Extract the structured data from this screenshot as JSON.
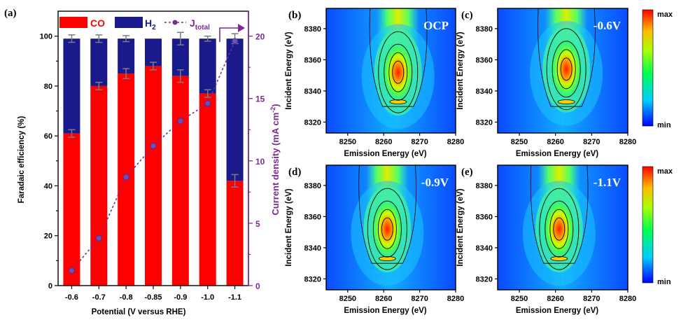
{
  "panel_a": {
    "label": "(a)",
    "xlabel": "Potential (V versus RHE)",
    "ylabel_left": "Faradaic efficiency (%)",
    "ylabel_right": "Current density (mA cm",
    "ylabel_right_sup": "-2",
    "ylabel_right_close": ")",
    "legend": {
      "co": "CO",
      "h2_main": "H",
      "h2_sub": "2",
      "j_main": "J",
      "j_sub": "total"
    }
  },
  "colors": {
    "co": "#ff0000",
    "h2": "#1a1a8c",
    "j": "#7b2a91",
    "right_axis": "#7b2a91"
  },
  "map_panels": [
    {
      "label": "(b)",
      "condition": "OCP",
      "peak_x": 8264
    },
    {
      "label": "(c)",
      "condition": "-0.6V",
      "peak_x": 8263
    },
    {
      "label": "(d)",
      "condition": "-0.9V",
      "peak_x": 8261
    },
    {
      "label": "(e)",
      "condition": "-1.1V",
      "peak_x": 8261
    }
  ],
  "map_axes": {
    "xlabel": "Emission Energy (eV)",
    "ylabel": "Incident Energy (eV)",
    "xticks": [
      "8250",
      "8260",
      "8270",
      "8280"
    ],
    "yticks": [
      "8320",
      "8340",
      "8360",
      "8380"
    ],
    "xlim": [
      8244,
      8280
    ],
    "ylim": [
      8313,
      8393
    ]
  },
  "colorbar": {
    "max": "max",
    "min": "min"
  },
  "chart_data": [
    {
      "type": "bar",
      "stacked": true,
      "categories": [
        "-0.6",
        "-0.7",
        "-0.8",
        "-0.85",
        "-0.9",
        "-1.0",
        "-1.1"
      ],
      "xlabel": "Potential (V versus RHE)",
      "ylabel": "Faradaic efficiency (%)",
      "ylim": [
        0,
        110
      ],
      "yticks": [
        "0",
        "20",
        "40",
        "60",
        "80",
        "100"
      ],
      "series": [
        {
          "name": "CO",
          "values": [
            61,
            80,
            85,
            88,
            84,
            77,
            42
          ],
          "errors": [
            1.5,
            1.5,
            2,
            1.5,
            2.5,
            1.5,
            2.5
          ]
        },
        {
          "name": "H2",
          "values": [
            38,
            19,
            14,
            11,
            15,
            22,
            57
          ],
          "errors": [
            1.5,
            1.5,
            1.2,
            0,
            2.5,
            1,
            2
          ]
        }
      ],
      "secondary_axis": {
        "name": "J total",
        "ylabel": "Current density (mA cm-2)",
        "ylim": [
          0,
          22
        ],
        "yticks": [
          "0",
          "5",
          "10",
          "15",
          "20"
        ],
        "values": [
          1.2,
          3.8,
          8.7,
          11.2,
          13.2,
          14.6,
          19.6
        ]
      }
    },
    {
      "type": "heatmap",
      "title": "OCP",
      "xlabel": "Emission Energy (eV)",
      "ylabel": "Incident Energy (eV)",
      "xlim": [
        8244,
        8280
      ],
      "ylim": [
        8313,
        8393
      ],
      "peak": {
        "emission": 8264,
        "incident": 8352
      },
      "colorscale": [
        "min",
        "max"
      ]
    },
    {
      "type": "heatmap",
      "title": "-0.6V",
      "xlabel": "Emission Energy (eV)",
      "ylabel": "Incident Energy (eV)",
      "xlim": [
        8244,
        8280
      ],
      "ylim": [
        8313,
        8393
      ],
      "peak": {
        "emission": 8263,
        "incident": 8354
      },
      "colorscale": [
        "min",
        "max"
      ]
    },
    {
      "type": "heatmap",
      "title": "-0.9V",
      "xlabel": "Emission Energy (eV)",
      "ylabel": "Incident Energy (eV)",
      "xlim": [
        8244,
        8280
      ],
      "ylim": [
        8313,
        8393
      ],
      "peak": {
        "emission": 8261,
        "incident": 8352
      },
      "colorscale": [
        "min",
        "max"
      ]
    },
    {
      "type": "heatmap",
      "title": "-1.1V",
      "xlabel": "Emission Energy (eV)",
      "ylabel": "Incident Energy (eV)",
      "xlim": [
        8244,
        8280
      ],
      "ylim": [
        8313,
        8393
      ],
      "peak": {
        "emission": 8261,
        "incident": 8352
      },
      "colorscale": [
        "min",
        "max"
      ]
    }
  ]
}
